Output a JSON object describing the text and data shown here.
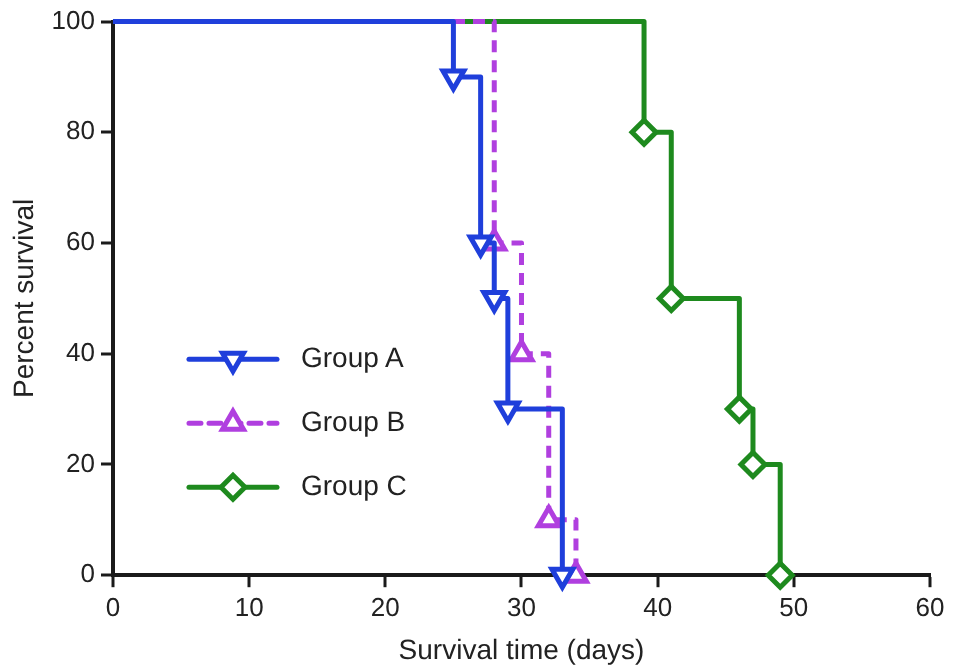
{
  "chart_data": {
    "type": "step",
    "xlabel": "Survival time (days)",
    "ylabel": "Percent survival",
    "xlim": [
      0,
      60
    ],
    "xticks": [
      0,
      10,
      20,
      30,
      40,
      50,
      60
    ],
    "ylim": [
      0,
      100
    ],
    "yticks": [
      0,
      20,
      40,
      60,
      80,
      100
    ],
    "grid": false,
    "legend": "bottom left",
    "series": [
      {
        "name": "Group A",
        "color": "#1f3fdb",
        "marker": "triangle-down",
        "line_style": "solid",
        "x": [
          0,
          25,
          27,
          28,
          29,
          33
        ],
        "values": [
          100,
          90,
          60,
          50,
          30,
          0
        ]
      },
      {
        "name": "Group B",
        "color": "#b03fdf",
        "marker": "triangle",
        "line_style": "dashed",
        "x": [
          0,
          28,
          30,
          32,
          34
        ],
        "values": [
          100,
          60,
          40,
          10,
          0
        ]
      },
      {
        "name": "Group C",
        "color": "#1e8a1e",
        "marker": "diamond",
        "line_style": "solid",
        "x": [
          0,
          39,
          41,
          46,
          47,
          49
        ],
        "values": [
          100,
          80,
          50,
          30,
          20,
          0
        ]
      }
    ]
  }
}
